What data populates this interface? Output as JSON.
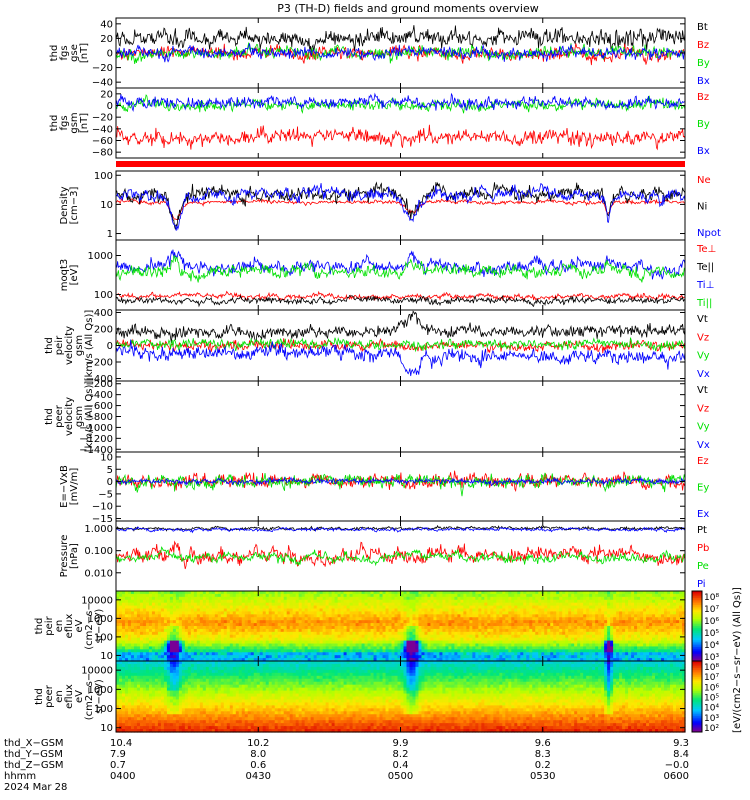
{
  "title": "P3 (TH-D) fields and ground moments overview",
  "colors": {
    "black": "#000000",
    "red": "#ff0000",
    "green": "#00e000",
    "blue": "#0000ff"
  },
  "chart_data": [
    {
      "type": "line",
      "panel": "fgs_gse",
      "ylabel": [
        "thd",
        "fgs",
        "gse",
        "[nT]"
      ],
      "yticks": [
        "40",
        "20",
        "0",
        "−20",
        "−40"
      ],
      "tick_values": [
        40,
        20,
        0,
        -20,
        -40
      ],
      "ylim": [
        -48,
        48
      ],
      "series": [
        {
          "name": "Bt",
          "color": "black",
          "base": 20,
          "amp": 11
        },
        {
          "name": "Bz",
          "color": "red",
          "base": -1,
          "amp": 8
        },
        {
          "name": "By",
          "color": "green",
          "base": 0,
          "amp": 8
        },
        {
          "name": "Bx",
          "color": "blue",
          "base": 0,
          "amp": 7
        }
      ]
    },
    {
      "type": "line",
      "panel": "fgs_gsm",
      "ylabel": [
        "thd",
        "fgs",
        "gsm",
        "[nT]"
      ],
      "yticks": [
        "20",
        "0",
        "−20",
        "−40",
        "−60",
        "−80"
      ],
      "tick_values": [
        20,
        0,
        -20,
        -40,
        -60,
        -80
      ],
      "ylim": [
        -90,
        30
      ],
      "series": [
        {
          "name": "Bz",
          "color": "red",
          "base": -55,
          "amp": 12
        },
        {
          "name": "By",
          "color": "green",
          "base": 0,
          "amp": 9
        },
        {
          "name": "Bx",
          "color": "blue",
          "base": 5,
          "amp": 9
        }
      ]
    },
    {
      "type": "line",
      "panel": "density",
      "ylabel": [
        "Density",
        "[cm−3]"
      ],
      "yticks": [
        "100",
        "10",
        "1"
      ],
      "tick_values": [
        100,
        10,
        1
      ],
      "log": true,
      "ylim": [
        0.6,
        140
      ],
      "series": [
        {
          "name": "Ne",
          "color": "red",
          "base": 12,
          "amp": 0.1
        },
        {
          "name": "Ni",
          "color": "black",
          "base": 25,
          "amp": 0.35
        },
        {
          "name": "Npot",
          "color": "blue",
          "base": 22,
          "amp": 0.3
        }
      ]
    },
    {
      "type": "line",
      "panel": "moms",
      "ylabel": [
        "moqt3",
        "[eV]"
      ],
      "yticks": [
        "1000",
        "100"
      ],
      "tick_values": [
        1000,
        100
      ],
      "log": true,
      "ylim": [
        40,
        2500
      ],
      "series": [
        {
          "name": "Te⊥",
          "color": "red",
          "base": 90,
          "amp": 0.1
        },
        {
          "name": "Te||",
          "color": "black",
          "base": 70,
          "amp": 0.12
        },
        {
          "name": "Ti⊥",
          "color": "blue",
          "base": 520,
          "amp": 0.25
        },
        {
          "name": "Ti||",
          "color": "green",
          "base": 380,
          "amp": 0.22
        }
      ]
    },
    {
      "type": "line",
      "panel": "peir_velocity",
      "ylabel": [
        "thd",
        "peir",
        "velocity",
        "gsm",
        "[km/s (All Qs)]"
      ],
      "yticks": [
        "400",
        "200",
        "0",
        "−200",
        "−400"
      ],
      "tick_values": [
        400,
        200,
        0,
        -200,
        -400
      ],
      "ylim": [
        -430,
        430
      ],
      "series": [
        {
          "name": "Vt",
          "color": "black",
          "base": 170,
          "amp": 70
        },
        {
          "name": "Vz",
          "color": "red",
          "base": 0,
          "amp": 50
        },
        {
          "name": "Vy",
          "color": "green",
          "base": 20,
          "amp": 55
        },
        {
          "name": "Vx",
          "color": "blue",
          "base": -140,
          "amp": 80
        }
      ]
    },
    {
      "type": "line",
      "panel": "peer_velocity",
      "ylabel": [
        "thd",
        "peer",
        "velocity",
        "gsm",
        "[km/s (All Qs)]"
      ],
      "yticks": [
        "−200",
        "−400",
        "−600",
        "−800",
        "−1000",
        "−1200",
        "−1400"
      ],
      "tick_values": [
        -200,
        -400,
        -600,
        -800,
        -1000,
        -1200,
        -1400
      ],
      "ylim": [
        -1450,
        -150
      ],
      "series": [
        {
          "name": "Vt",
          "color": "black",
          "base": 0,
          "amp": 0
        },
        {
          "name": "Vz",
          "color": "red",
          "base": 0,
          "amp": 0
        },
        {
          "name": "Vy",
          "color": "green",
          "base": 0,
          "amp": 0
        },
        {
          "name": "Vx",
          "color": "blue",
          "base": 0,
          "amp": 0
        }
      ]
    },
    {
      "type": "line",
      "panel": "efield",
      "ylabel": [
        "E=−VxB",
        "[mV/m]"
      ],
      "yticks": [
        "10",
        "5",
        "0",
        "−5",
        "−10",
        "−15"
      ],
      "tick_values": [
        10,
        5,
        0,
        -5,
        -10,
        -15
      ],
      "ylim": [
        -16,
        12
      ],
      "series": [
        {
          "name": "Ez",
          "color": "red",
          "base": 0,
          "amp": 2.5
        },
        {
          "name": "Ey",
          "color": "green",
          "base": 0,
          "amp": 2.5
        },
        {
          "name": "Ex",
          "color": "blue",
          "base": 0,
          "amp": 1
        }
      ]
    },
    {
      "type": "line",
      "panel": "pressure",
      "ylabel": [
        "Pressure",
        "[nPa]"
      ],
      "yticks": [
        "1.000",
        "0.100",
        "0.010"
      ],
      "tick_values": [
        1,
        0.1,
        0.01
      ],
      "log": true,
      "ylim": [
        0.0015,
        2.2
      ],
      "series": [
        {
          "name": "Pt",
          "color": "black",
          "base": 1.0,
          "amp": 0.1
        },
        {
          "name": "Pb",
          "color": "red",
          "base": 0.06,
          "amp": 0.5
        },
        {
          "name": "Pe",
          "color": "green",
          "base": 0.05,
          "amp": 0.3
        },
        {
          "name": "Pi",
          "color": "blue",
          "base": 0.9,
          "amp": 0.1
        }
      ]
    },
    {
      "type": "heatmap",
      "panel": "peir_en_eflux",
      "ylabel": [
        "thd",
        "peir",
        "en",
        "eflux",
        "eV",
        "(cm2−s−",
        "sr−eV)"
      ],
      "yticks": [
        "10000",
        "1000",
        "100",
        "10"
      ],
      "tick_values": [
        10000,
        1000,
        100,
        10
      ],
      "log": true,
      "ylim": [
        5,
        30000
      ]
    },
    {
      "type": "heatmap",
      "panel": "peer_en_eflux",
      "ylabel": [
        "thd",
        "peer",
        "en",
        "eflux",
        "eV",
        "(cm2−s−",
        "sr−eV)"
      ],
      "yticks": [
        "10000",
        "1000",
        "100",
        "10"
      ],
      "tick_values": [
        10000,
        1000,
        100,
        10
      ],
      "log": true,
      "ylim": [
        6,
        30000
      ]
    }
  ],
  "colorbar": {
    "label": "[eV/(cm2−s−sr−eV) (All Qs)]",
    "upper_ticks": [
      "10⁸",
      "10⁷",
      "10⁶",
      "10⁵",
      "10⁴",
      "10³"
    ],
    "lower_ticks": [
      "10⁸",
      "10⁷",
      "10⁶",
      "10⁵",
      "10⁴",
      "10³",
      "10²"
    ]
  },
  "x_axis": {
    "row_labels": [
      "thd_X−GSM",
      "thd_Y−GSM",
      "thd_Z−GSM",
      "hhmm",
      "2024 Mar 28"
    ],
    "columns": [
      [
        "10.4",
        "7.9",
        "0.7",
        "0400"
      ],
      [
        "10.2",
        "8.0",
        "0.6",
        "0430"
      ],
      [
        "9.9",
        "8.2",
        "0.4",
        "0500"
      ],
      [
        "9.6",
        "8.3",
        "0.2",
        "0530"
      ],
      [
        "9.3",
        "8.4",
        "−0.0",
        "0600"
      ]
    ]
  }
}
